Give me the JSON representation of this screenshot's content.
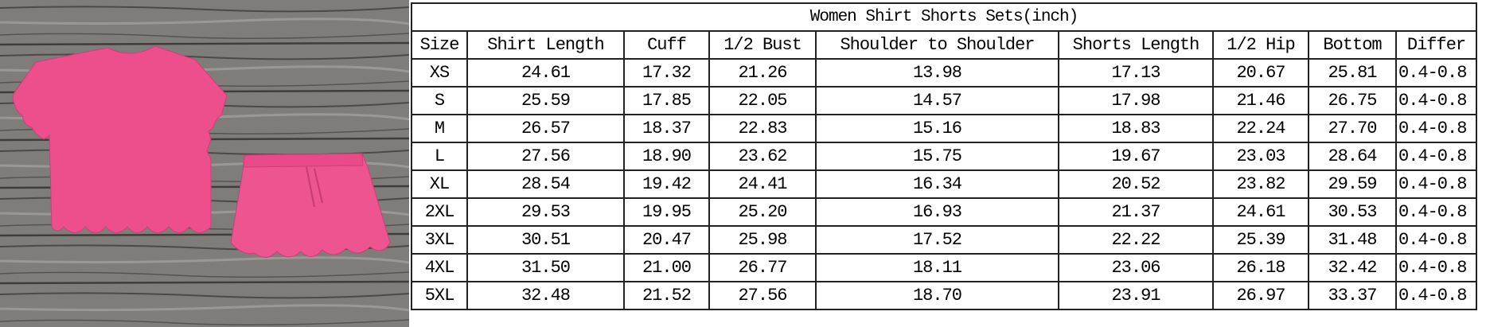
{
  "photo": {
    "description_colors": {
      "background": "#7d7b78",
      "garment": "#ec4f8c"
    }
  },
  "table": {
    "title": "Women Shirt Shorts Sets(inch)",
    "headers": [
      "Size",
      "Shirt Length",
      "Cuff",
      "1/2 Bust",
      "Shoulder to Shoulder",
      "Shorts Length",
      "1/2 Hip",
      "Bottom",
      "Differ"
    ],
    "rows": [
      [
        "XS",
        "24.61",
        "17.32",
        "21.26",
        "13.98",
        "17.13",
        "20.67",
        "25.81",
        "0.4-0.8"
      ],
      [
        "S",
        "25.59",
        "17.85",
        "22.05",
        "14.57",
        "17.98",
        "21.46",
        "26.75",
        "0.4-0.8"
      ],
      [
        "M",
        "26.57",
        "18.37",
        "22.83",
        "15.16",
        "18.83",
        "22.24",
        "27.70",
        "0.4-0.8"
      ],
      [
        "L",
        "27.56",
        "18.90",
        "23.62",
        "15.75",
        "19.67",
        "23.03",
        "28.64",
        "0.4-0.8"
      ],
      [
        "XL",
        "28.54",
        "19.42",
        "24.41",
        "16.34",
        "20.52",
        "23.82",
        "29.59",
        "0.4-0.8"
      ],
      [
        "2XL",
        "29.53",
        "19.95",
        "25.20",
        "16.93",
        "21.37",
        "24.61",
        "30.53",
        "0.4-0.8"
      ],
      [
        "3XL",
        "30.51",
        "20.47",
        "25.98",
        "17.52",
        "22.22",
        "25.39",
        "31.48",
        "0.4-0.8"
      ],
      [
        "4XL",
        "31.50",
        "21.00",
        "26.77",
        "18.11",
        "23.06",
        "26.18",
        "32.42",
        "0.4-0.8"
      ],
      [
        "5XL",
        "32.48",
        "21.52",
        "27.56",
        "18.70",
        "23.91",
        "26.97",
        "33.37",
        "0.4-0.8"
      ]
    ]
  }
}
